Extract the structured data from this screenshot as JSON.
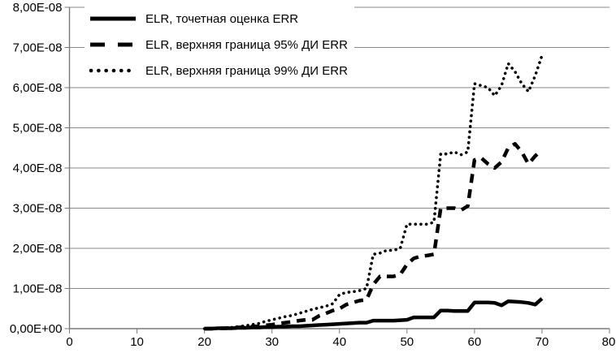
{
  "chart_data": {
    "type": "line",
    "title": "",
    "xlabel": "",
    "ylabel": "",
    "grid": "horizontal",
    "legend_position": "top-left-inside",
    "x_axis": {
      "min": 0,
      "max": 80,
      "ticks": [
        "0",
        "10",
        "20",
        "30",
        "40",
        "50",
        "60",
        "70",
        "80"
      ]
    },
    "y_axis": {
      "unit": "1e-08",
      "min_units": 0,
      "max_units": 8,
      "tick_labels": [
        "0,00E+00",
        "1,00E-08",
        "2,00E-08",
        "3,00E-08",
        "4,00E-08",
        "5,00E-08",
        "6,00E-08",
        "7,00E-08",
        "8,00E-08"
      ]
    },
    "x": [
      20,
      21,
      22,
      23,
      24,
      25,
      26,
      27,
      28,
      29,
      30,
      31,
      32,
      33,
      34,
      35,
      36,
      37,
      38,
      39,
      40,
      41,
      42,
      43,
      44,
      45,
      46,
      47,
      48,
      49,
      50,
      51,
      52,
      53,
      54,
      55,
      56,
      57,
      58,
      59,
      60,
      61,
      62,
      63,
      64,
      65,
      66,
      67,
      68,
      69,
      70
    ],
    "series": [
      {
        "name": "ELR, точетная оценка ERR",
        "style": "solid",
        "values_1e8": [
          0,
          0,
          0.01,
          0.01,
          0.01,
          0.02,
          0.02,
          0.03,
          0.03,
          0.04,
          0.04,
          0.05,
          0.05,
          0.06,
          0.06,
          0.07,
          0.08,
          0.09,
          0.1,
          0.11,
          0.12,
          0.13,
          0.14,
          0.15,
          0.15,
          0.2,
          0.2,
          0.2,
          0.2,
          0.21,
          0.22,
          0.28,
          0.28,
          0.28,
          0.28,
          0.45,
          0.45,
          0.44,
          0.44,
          0.44,
          0.65,
          0.65,
          0.65,
          0.64,
          0.58,
          0.68,
          0.67,
          0.66,
          0.64,
          0.6,
          0.75
        ]
      },
      {
        "name": "ELR, верхняя граница 95% ДИ ERR",
        "style": "dashed",
        "values_1e8": [
          0,
          0,
          0.01,
          0.01,
          0.02,
          0.03,
          0.04,
          0.05,
          0.06,
          0.08,
          0.1,
          0.13,
          0.15,
          0.17,
          0.2,
          0.22,
          0.22,
          0.32,
          0.38,
          0.45,
          0.5,
          0.6,
          0.65,
          0.7,
          0.72,
          1.1,
          1.3,
          1.3,
          1.3,
          1.35,
          1.6,
          1.75,
          1.8,
          1.82,
          1.85,
          3.0,
          3.0,
          3.0,
          2.95,
          3.05,
          4.2,
          4.25,
          4.1,
          4.0,
          4.15,
          4.5,
          4.6,
          4.4,
          4.1,
          4.3,
          4.45
        ]
      },
      {
        "name": "ELR, верхняя граница 99% ДИ ERR",
        "style": "dotted",
        "values_1e8": [
          0,
          0.01,
          0.01,
          0.02,
          0.03,
          0.05,
          0.07,
          0.1,
          0.13,
          0.18,
          0.22,
          0.26,
          0.3,
          0.33,
          0.38,
          0.43,
          0.48,
          0.52,
          0.56,
          0.62,
          0.85,
          0.9,
          0.92,
          0.95,
          1.0,
          1.85,
          1.88,
          1.95,
          1.95,
          2.0,
          2.6,
          2.6,
          2.6,
          2.6,
          2.65,
          4.35,
          4.35,
          4.4,
          4.33,
          4.4,
          6.1,
          6.05,
          6.0,
          5.8,
          6.05,
          6.6,
          6.4,
          6.1,
          5.9,
          6.3,
          6.8
        ]
      }
    ],
    "colors": {
      "series": "#000000",
      "gridline": "#8a8a8a",
      "axis": "#7a7a7a",
      "background": "#ffffff",
      "text": "#000000"
    }
  }
}
